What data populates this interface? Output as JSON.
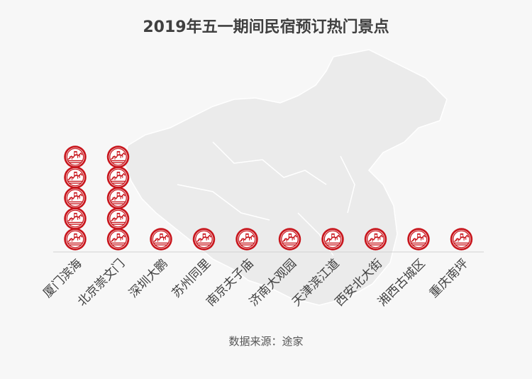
{
  "chart_data": {
    "type": "bar",
    "title": "2019年五一期间民宿预订热门景点",
    "categories": [
      "厦门滨海",
      "北京崇文门",
      "深圳大鹏",
      "苏州同里",
      "南京夫子庙",
      "济南大观园",
      "天津滨江道",
      "西安北大街",
      "湘西古城区",
      "重庆南坪"
    ],
    "values": [
      5,
      5,
      1,
      1,
      1,
      1,
      1,
      1,
      1,
      1
    ],
    "xlabel": "",
    "ylabel": "",
    "source": "数据来源：途家",
    "legend": "none",
    "grid": false,
    "style": "pictogram bar chart with stacked red seal icons over a light grey China map background"
  },
  "colors": {
    "icon_red": "#c8161d",
    "map_fill": "#ebebeb",
    "axis": "#d0d0d0",
    "text": "#404040"
  },
  "icon": "great-wall-seal-icon"
}
